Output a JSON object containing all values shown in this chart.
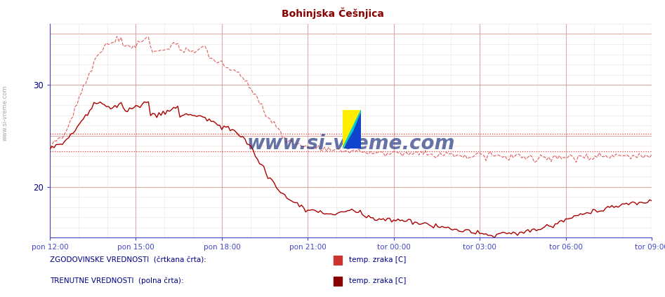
{
  "title": "Bohinjska Češnjica",
  "title_color": "#880000",
  "bg_color": "#ffffff",
  "plot_bg_color": "#ffffff",
  "grid_color_major": "#ddaaaa",
  "grid_color_minor": "#eedddd",
  "axis_color": "#4444cc",
  "text_color": "#000088",
  "xlabel_color": "#4444cc",
  "ylabel_color": "#000088",
  "ylim": [
    15,
    36
  ],
  "yticks": [
    20,
    30
  ],
  "xtick_labels": [
    "pon 12:00",
    "pon 15:00",
    "pon 18:00",
    "pon 21:00",
    "tor 00:00",
    "tor 03:00",
    "tor 06:00",
    "tor 09:00"
  ],
  "hline1": 25.2,
  "hline2": 23.5,
  "hline_color": "#ee3333",
  "watermark": "www.si-vreme.com",
  "watermark_color": "#334488",
  "legend_text1": "ZGODOVINSKE VREDNOSTI  (črtkana črta):",
  "legend_text2": "TRENUTNE VREDNOSTI  (polna črta):",
  "legend_label1": "temp. zraka [C]",
  "legend_label2": "temp. zraka [C]",
  "line1_color": "#dd6666",
  "line2_color": "#aa0000",
  "sidebar_text": "www.si-vreme.com",
  "sidebar_color": "#777777",
  "n_points": 288
}
